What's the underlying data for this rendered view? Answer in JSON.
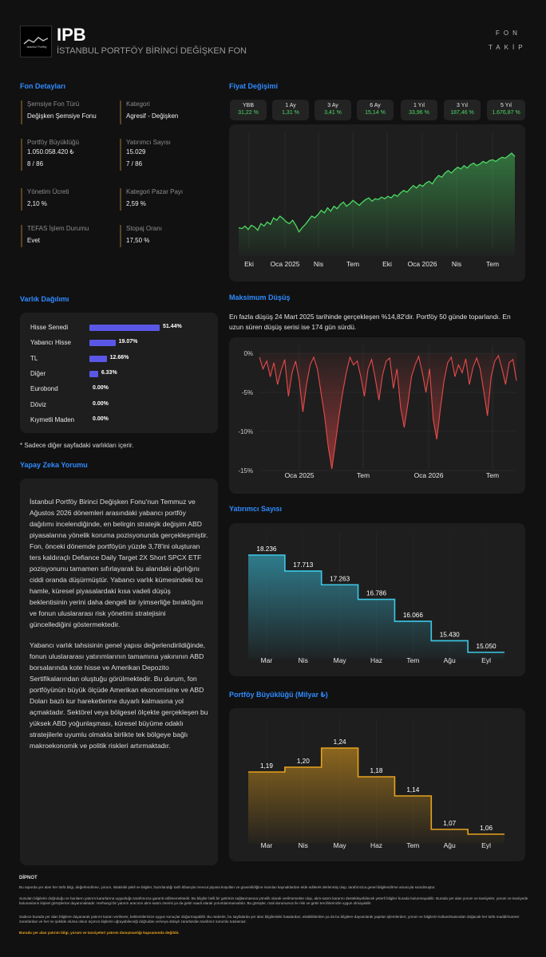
{
  "header": {
    "logo_text": "İstanbul Portföy",
    "code": "IPB",
    "fund_name": "İSTANBUL PORTFÖY BİRİNCİ DEĞİŞKEN FON",
    "brand_line1": "FON",
    "brand_line2": "TAKİP"
  },
  "fund_details": {
    "title": "Fon Detayları",
    "items": [
      {
        "label": "Şemsiye Fon Türü",
        "value": "Değişken Şemsiye Fonu",
        "extra": ""
      },
      {
        "label": "Kategori",
        "value": "Agresif - Değişken",
        "extra": ""
      },
      {
        "label": "Portföy Büyüklüğü",
        "value": "1.050.058.420 ₺",
        "extra": "8 / 86"
      },
      {
        "label": "Yatırımcı Sayısı",
        "value": "15.029",
        "extra": "7 / 86"
      },
      {
        "label": "Yönetim Ücreti",
        "value": "2,10 %",
        "extra": ""
      },
      {
        "label": "Kategori Pazar Payı",
        "value": "2,59 %",
        "extra": ""
      },
      {
        "label": "TEFAS İşlem Durumu",
        "value": "Evet",
        "extra": ""
      },
      {
        "label": "Stopaj Oranı",
        "value": "17,50 %",
        "extra": ""
      }
    ]
  },
  "price_change": {
    "title": "Fiyat Değişimi",
    "tabs": [
      {
        "label": "YBB",
        "value": "31,22 %"
      },
      {
        "label": "1 Ay",
        "value": "1,31 %"
      },
      {
        "label": "3 Ay",
        "value": "3,41 %"
      },
      {
        "label": "6 Ay",
        "value": "15,14 %"
      },
      {
        "label": "1 Yıl",
        "value": "33,96 %"
      },
      {
        "label": "3 Yıl",
        "value": "187,46 %"
      },
      {
        "label": "5 Yıl",
        "value": "1.676,87 %"
      }
    ],
    "accent": "#4cd964"
  },
  "asset_allocation": {
    "title": "Varlık Dağılımı",
    "note": "* Sadece diğer sayfadaki varlıkları içerir.",
    "bar_color": "#5b57e6"
  },
  "max_drawdown": {
    "title": "Maksimum Düşüş",
    "text": "En fazla düşüş 24 Mart 2025 tarihinde gerçekleşen %14,82'dir. Portföy 50 günde toparlandı. En uzun süren düşüş serisi ise 174 gün sürdü."
  },
  "ai_comment": {
    "title": "Yapay Zeka Yorumu",
    "p1": "İstanbul Portföy Birinci Değişken Fonu'nun Temmuz ve Ağustos 2026 dönemleri arasındaki yabancı portföy dağılımı incelendiğinde, en belirgin stratejik değişim ABD piyasalarına yönelik koruma pozisyonunda gerçekleşmiştir. Fon, önceki dönemde portföyün yüzde 3,78'ini oluşturan ters kaldıraçlı Defiance Daily Target 2X Short SPCX ETF pozisyonunu tamamen sıfırlayarak bu alandaki ağırlığını ciddi oranda düşürmüştür. Yabancı varlık kümesindeki bu hamle, küresel piyasalardaki kısa vadeli düşüş beklentisinin yerini daha dengeli bir iyimserliğe bıraktığını ve fonun uluslararası risk yönetimi stratejisini güncellediğini göstermektedir.",
    "p2": "Yabancı varlık tahsisinin genel yapısı değerlendirildiğinde, fonun uluslararası yatırımlarının tamamına yakınının ABD borsalarında kote hisse ve Amerikan Depozito Sertifikalarından oluştuğu görülmektedir. Bu durum, fon portföyünün büyük ölçüde Amerikan ekonomisine ve ABD Doları bazlı kur hareketlerine duyarlı kalmasına yol açmaktadır. Sektörel veya bölgesel ölçekte gerçekleşen bu yüksek ABD yoğunlaşması, küresel büyüme odaklı stratejilerle uyumlu olmakla birlikte tek bölgeye bağlı makroekonomik ve politik riskleri artırmaktadır."
  },
  "investor_count": {
    "title": "Yatırımcı Sayısı",
    "accent": "#3cc8e6"
  },
  "portfolio_size": {
    "title": "Portföy Büyüklüğü (Milyar ₺)",
    "accent": "#e6a21e"
  },
  "disclaimer": {
    "title": "DİPNOT",
    "p1": "Bu raporda yer alan her türlü bilgi, değerlendirme, yorum, istatistiki şekil ve bilgiler, hazırlandığı tarih itibarıyla mevcut piyasa koşulları ve güvenilirliğine inanılan kaynaklardan elde edilerek derlenmiş olup, tarafımızca genel bilgilendirme amacıyla sunulmuştur.",
    "p2": "Sunulan bilgilerin doğruluğu ve bunların yatırım kararlarına uygunluğu tarafımızca garanti edilmemektedir. Bu bilgiler belli bir getirinin sağlanmasına yönelik olarak verilmemekte olup, alım-satım kararını destekleyebilecek yeterli bilgiler burada bulunmayabilir. Burada yer alan yorum ve tavsiyeler, yorum ve tavsiyede bulunanların kişisel görüşlerine dayanmaktadır. Herhangi bir yatırım aracının alım-satım önerisi ya da getiri vaadi olarak yorumlanmamalıdır. Bu görüşler, mali durumunuz ile risk ve getiri tercihlerinizle uygun olmayabilir.",
    "p3": "Sadece burada yer alan bilgilere dayanarak yatırım kararı verilmesi, beklentilerinize uygun sonuçlar doğurmayabilir. Bu nedenle, bu sayfalarda yer alan bilgilerdeki hatalardan, eksikliklerden ya da bu bilgilere dayanılarak yapılan işlemlerden; yorum ve bilgilerin kullanılmasından doğacak her türlü maddi/manevi zararlardan ve her ne şekilde olursa olsun üçüncü kişilerin uğrayabileceği doğrudan ve/veya dolaylı zararlardan tarafımız sorumlu tutulamaz.",
    "warning": "Burada yer alan yatırım bilgi, yorum ve tavsiyeleri yatırım danışmanlığı kapsamında değildir.",
    "warning_color": "#e6a21e"
  },
  "chart_data": [
    {
      "type": "line",
      "x_ticks": [
        "Eki",
        "Oca 2025",
        "Nis",
        "Tem",
        "Eki",
        "Oca 2026",
        "Nis",
        "Tem"
      ],
      "values": [
        0.1,
        0.09,
        0.12,
        0.08,
        0.13,
        0.11,
        0.07,
        0.15,
        0.12,
        0.17,
        0.14,
        0.22,
        0.19,
        0.24,
        0.21,
        0.17,
        0.15,
        0.19,
        0.13,
        0.05,
        0.1,
        0.14,
        0.19,
        0.24,
        0.22,
        0.26,
        0.31,
        0.28,
        0.34,
        0.3,
        0.36,
        0.33,
        0.38,
        0.41,
        0.36,
        0.39,
        0.43,
        0.4,
        0.37,
        0.41,
        0.44,
        0.46,
        0.42,
        0.45,
        0.44,
        0.47,
        0.45,
        0.48,
        0.46,
        0.5,
        0.48,
        0.52,
        0.55,
        0.53,
        0.57,
        0.61,
        0.58,
        0.62,
        0.6,
        0.64,
        0.66,
        0.63,
        0.69,
        0.73,
        0.71,
        0.76,
        0.79,
        0.76,
        0.8,
        0.83,
        0.81,
        0.85,
        0.82,
        0.86,
        0.88,
        0.85,
        0.87,
        0.9,
        0.88,
        0.91,
        0.92,
        0.9,
        0.93,
        0.95,
        0.94,
        0.97,
        1.0,
        0.96
      ],
      "accent": "#4cd964"
    },
    {
      "type": "area",
      "x_ticks": [
        "Oca 2025",
        "Tem",
        "Oca 2026",
        "Tem"
      ],
      "y_ticks": [
        "0%",
        "-5%",
        "-10%",
        "-15%"
      ],
      "ylim": [
        -15,
        0
      ],
      "values": [
        -0.5,
        -2.0,
        -1.0,
        -3.0,
        -1.2,
        -4.0,
        -2.2,
        -0.8,
        -5.5,
        -2.5,
        -1.0,
        -3.5,
        -7.5,
        -4.0,
        -1.5,
        -0.5,
        -2.0,
        -5.0,
        -8.0,
        -12.0,
        -14.8,
        -11.5,
        -8.0,
        -5.0,
        -2.5,
        -0.5,
        -1.5,
        -1.0,
        -3.0,
        -5.5,
        -2.0,
        -0.8,
        -3.2,
        -6.0,
        -2.8,
        -1.0,
        -0.6,
        -4.5,
        -2.0,
        -7.0,
        -9.5,
        -6.5,
        -3.0,
        -1.5,
        -0.4,
        -2.5,
        -5.0,
        -2.0,
        -8.5,
        -11.0,
        -7.0,
        -3.5,
        -1.2,
        -0.5,
        -3.0,
        -1.5,
        -2.5,
        -0.7,
        -4.0,
        -1.8,
        -0.6,
        -2.0,
        -5.0,
        -8.0,
        -3.0,
        -1.0,
        -0.3,
        -2.0,
        -4.0,
        -1.2,
        -0.8,
        -3.5
      ],
      "accent": "#e84a4a"
    },
    {
      "type": "line",
      "title": "Yatırımcı Sayısı",
      "categories": [
        "Mar",
        "Nis",
        "May",
        "Haz",
        "Tem",
        "Ağu",
        "Eyl"
      ],
      "values": [
        18236,
        17713,
        17263,
        16786,
        16066,
        15430,
        15050
      ],
      "labels": [
        "18.236",
        "17.713",
        "17.263",
        "16.786",
        "16.066",
        "15.430",
        "15.050"
      ]
    },
    {
      "type": "line",
      "title": "Portföy Büyüklüğü (Milyar ₺)",
      "categories": [
        "Mar",
        "Nis",
        "May",
        "Haz",
        "Tem",
        "Ağu",
        "Eyl"
      ],
      "values": [
        1.19,
        1.2,
        1.24,
        1.18,
        1.14,
        1.07,
        1.06
      ],
      "labels": [
        "1,19",
        "1,20",
        "1,24",
        "1,18",
        "1,14",
        "1,07",
        "1,06"
      ]
    },
    {
      "type": "bar",
      "title": "Varlık Dağılımı",
      "categories": [
        "Hisse Senedi",
        "Yabancı Hisse",
        "TL",
        "Diğer",
        "Eurobond",
        "Döviz",
        "Kıymetli Maden"
      ],
      "values": [
        51.44,
        19.07,
        12.66,
        6.33,
        0.0,
        0.0,
        0.0
      ],
      "labels": [
        "51.44%",
        "19.07%",
        "12.66%",
        "6.33%",
        "0.00%",
        "0.00%",
        "0.00%"
      ]
    }
  ]
}
